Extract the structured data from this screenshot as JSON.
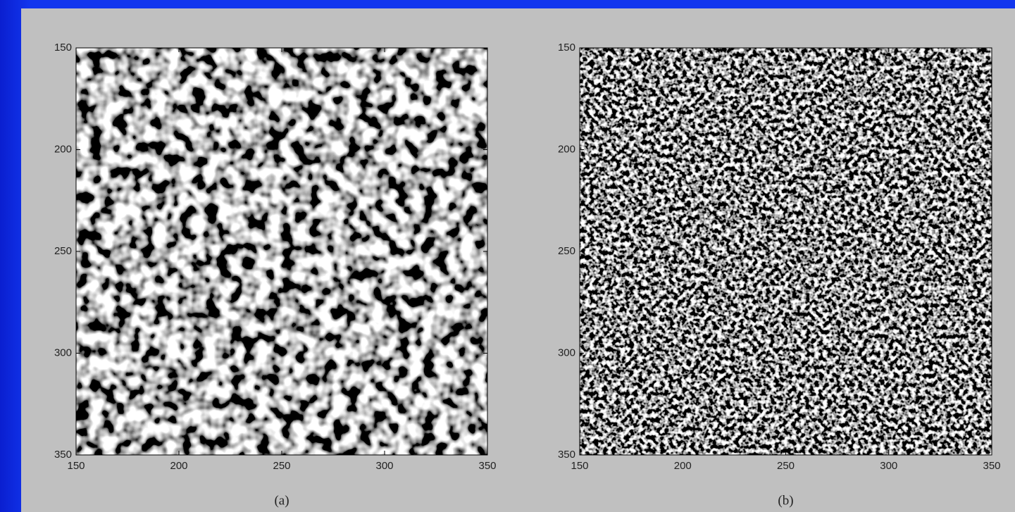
{
  "chart_data": [
    {
      "type": "image",
      "caption": "(a)",
      "xlim": [
        150,
        350
      ],
      "xticks": [
        150,
        200,
        250,
        300,
        350
      ],
      "ylim": [
        350,
        150
      ],
      "yticks": [
        150,
        200,
        250,
        300,
        350
      ]
    },
    {
      "type": "image",
      "caption": "(b)",
      "xlim": [
        150,
        350
      ],
      "xticks": [
        150,
        200,
        250,
        300,
        350
      ],
      "ylim": [
        350,
        150
      ],
      "yticks": [
        150,
        200,
        250,
        300,
        350
      ]
    }
  ]
}
